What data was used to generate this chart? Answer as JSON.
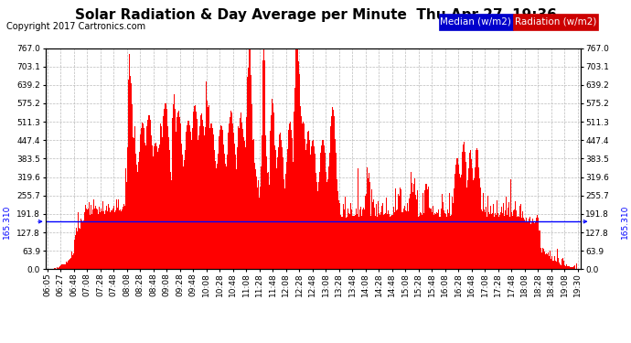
{
  "title": "Solar Radiation & Day Average per Minute  Thu Apr 27  19:36",
  "copyright": "Copyright 2017 Cartronics.com",
  "legend_median_label": "Median (w/m2)",
  "legend_radiation_label": "Radiation (w/m2)",
  "median_value": 165.31,
  "y_max": 767.0,
  "y_min": 0.0,
  "y_ticks": [
    0.0,
    63.9,
    127.8,
    191.8,
    255.7,
    319.6,
    383.5,
    447.4,
    511.3,
    575.2,
    639.2,
    703.1,
    767.0
  ],
  "x_tick_labels": [
    "06:05",
    "06:27",
    "06:48",
    "07:08",
    "07:28",
    "07:48",
    "08:08",
    "08:28",
    "08:48",
    "09:08",
    "09:28",
    "09:48",
    "10:08",
    "10:28",
    "10:48",
    "11:08",
    "11:28",
    "11:48",
    "12:08",
    "12:28",
    "12:48",
    "13:08",
    "13:28",
    "13:48",
    "14:08",
    "14:28",
    "14:48",
    "15:08",
    "15:28",
    "15:48",
    "16:08",
    "16:28",
    "16:48",
    "17:08",
    "17:28",
    "17:48",
    "18:08",
    "18:28",
    "18:48",
    "19:08",
    "19:30"
  ],
  "background_color": "#ffffff",
  "plot_bg_color": "#ffffff",
  "bar_color": "#ff0000",
  "median_line_color": "#0000ff",
  "grid_color": "#bbbbbb",
  "title_color": "#000000",
  "title_fontsize": 11,
  "copyright_fontsize": 7,
  "tick_fontsize": 6.5,
  "legend_fontsize": 7.5
}
